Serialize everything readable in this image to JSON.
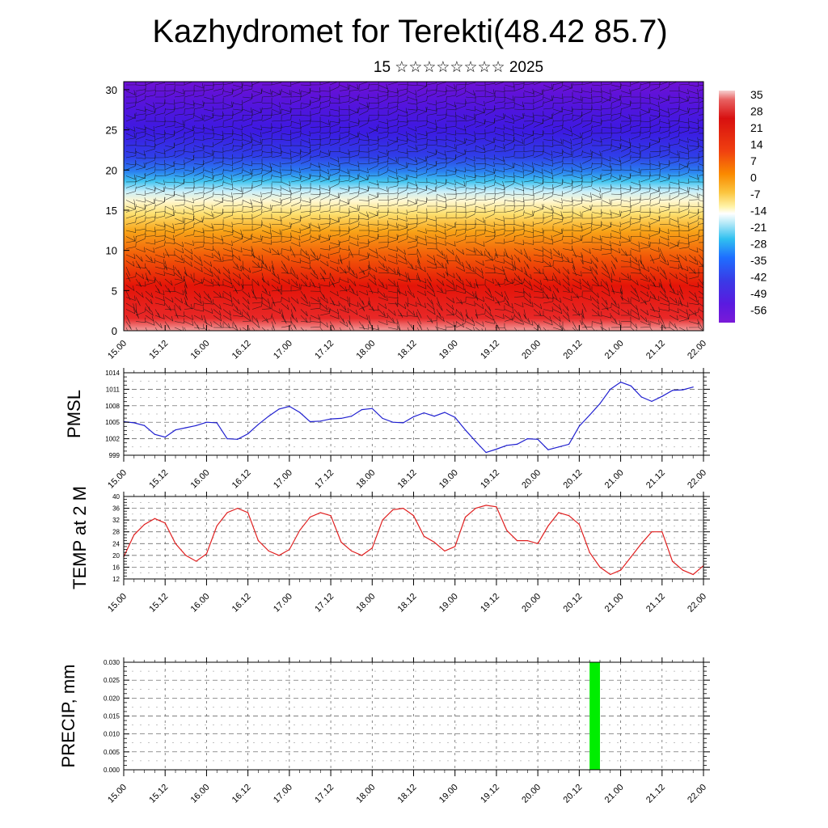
{
  "title": "Kazhydromet for Terekti(48.42 85.7)",
  "subtitle": "15 ☆☆☆☆☆☆☆☆ 2025",
  "time_ticks": [
    "15.00",
    "15.12",
    "16.00",
    "16.12",
    "17.00",
    "17.12",
    "18.00",
    "18.12",
    "19.00",
    "19.12",
    "20.00",
    "20.12",
    "21.00",
    "21.12",
    "22.00"
  ],
  "chart_data": [
    {
      "id": "cross-section",
      "type": "heatmap",
      "title": "",
      "xlabel": "",
      "ylabel": "",
      "y_ticks": [
        "0",
        "5",
        "10",
        "15",
        "20",
        "25",
        "30"
      ],
      "ylim": [
        0,
        31
      ],
      "colorbar": {
        "labels": [
          "35",
          "28",
          "21",
          "14",
          "7",
          "0",
          "-7",
          "-14",
          "-21",
          "-28",
          "-35",
          "-42",
          "-49",
          "-56"
        ],
        "colors": [
          "#f4c6c6",
          "#e05050",
          "#d81010",
          "#f04010",
          "#fa7f00",
          "#fbc020",
          "#fff3a8",
          "#ffffff",
          "#a8e8f8",
          "#30c0f0",
          "#1e6eff",
          "#3a3ae6",
          "#5a1ae0",
          "#7a1ad8"
        ]
      },
      "description_levels": {
        "surface_warm_maxima_days": [
          "16.12",
          "17.12",
          "18.12",
          "19.12",
          "20.00"
        ]
      }
    },
    {
      "id": "pmsl",
      "type": "line",
      "ylabel": "PMSL",
      "y_ticks": [
        "999",
        "1002",
        "1005",
        "1008",
        "1011",
        "1014"
      ],
      "ylim": [
        999,
        1014
      ],
      "color": "#2020d0",
      "x_step_hours": 3,
      "values": [
        1005.1,
        1004.9,
        1004.4,
        1002.8,
        1002.3,
        1003.6,
        1004.0,
        1004.4,
        1005.0,
        1004.9,
        1002.0,
        1001.9,
        1002.9,
        1004.6,
        1006.1,
        1007.4,
        1007.9,
        1006.8,
        1005.1,
        1005.2,
        1005.6,
        1005.7,
        1006.1,
        1007.3,
        1007.5,
        1005.7,
        1005.0,
        1004.9,
        1006.0,
        1006.7,
        1006.1,
        1006.8,
        1005.9,
        1003.6,
        1001.5,
        999.5,
        1000.1,
        1000.8,
        1001.0,
        1002.0,
        1001.9,
        1000.0,
        1000.5,
        1001.0,
        1004.3,
        1006.3,
        1008.4,
        1011.0,
        1012.3,
        1011.6,
        1009.6,
        1008.8,
        1009.7,
        1010.8,
        1010.9,
        1011.4
      ]
    },
    {
      "id": "temp2m",
      "type": "line",
      "ylabel": "TEMP at 2 M",
      "y_ticks": [
        "12",
        "16",
        "20",
        "24",
        "28",
        "32",
        "36",
        "40"
      ],
      "ylim": [
        12,
        40
      ],
      "color": "#e02020",
      "x_step_hours": 3,
      "values": [
        19.5,
        27.0,
        30.5,
        32.5,
        31.0,
        24.0,
        20.0,
        18.0,
        20.5,
        30.0,
        34.5,
        36.0,
        34.5,
        25.0,
        21.5,
        20.0,
        22.0,
        28.5,
        33.0,
        34.5,
        33.5,
        24.5,
        21.5,
        20.0,
        22.5,
        32.0,
        35.5,
        36.0,
        33.5,
        26.5,
        24.5,
        21.5,
        23.0,
        33.0,
        36.0,
        37.0,
        36.5,
        28.5,
        25.0,
        25.0,
        24.0,
        30.0,
        34.5,
        33.5,
        30.5,
        21.0,
        16.0,
        13.5,
        15.0,
        19.5,
        24.0,
        28.0,
        28.0,
        18.0,
        15.0,
        13.5,
        16.5
      ]
    },
    {
      "id": "precip",
      "type": "bar",
      "ylabel": "PRECIP, mm",
      "y_ticks": [
        "0.000",
        "0.005",
        "0.010",
        "0.015",
        "0.020",
        "0.025",
        "0.030"
      ],
      "ylim": [
        0,
        0.03
      ],
      "color": "#00ee00",
      "bars": [
        {
          "x_hours": 135,
          "width_hours": 3,
          "value": 0.03
        }
      ]
    }
  ]
}
